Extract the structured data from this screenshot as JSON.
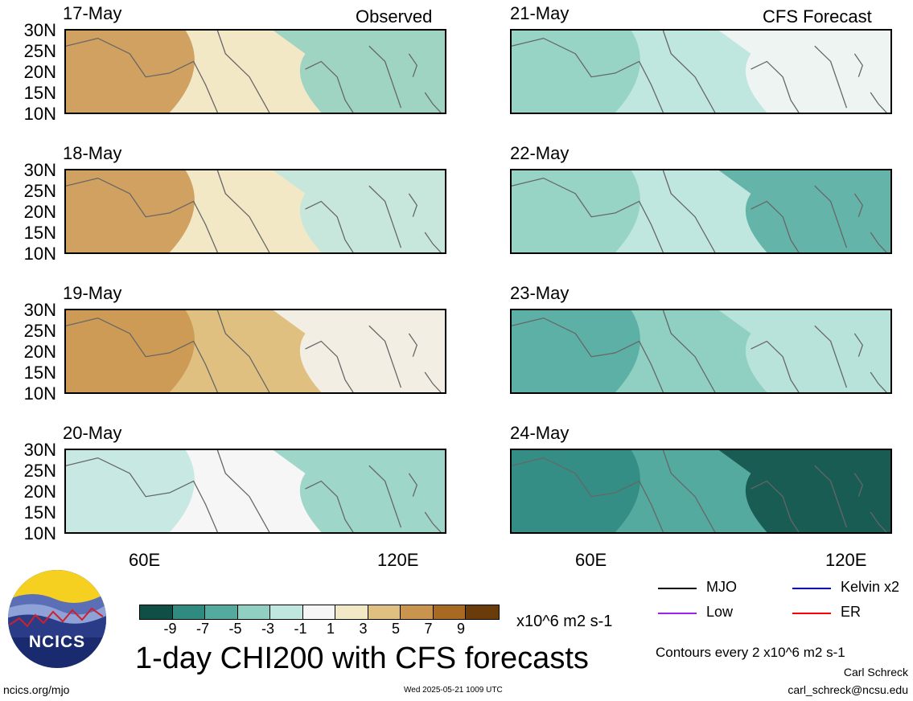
{
  "panels": {
    "left": [
      {
        "date": "17-May",
        "corner": "Observed",
        "fill": "#f3e8c5",
        "accent": "#c9944d",
        "accent2": "#8fd0c2"
      },
      {
        "date": "18-May",
        "fill": "#f3e8c5",
        "accent": "#c9944d",
        "accent2": "#bfe6df"
      },
      {
        "date": "19-May",
        "fill": "#e0c080",
        "accent": "#c9944d",
        "accent2": "#f6f6f6"
      },
      {
        "date": "20-May",
        "fill": "#f6f6f6",
        "accent": "#bfe6df",
        "accent2": "#8fd0c2"
      }
    ],
    "right": [
      {
        "date": "21-May",
        "corner": "CFS Forecast",
        "fill": "#bfe6df",
        "accent": "#8fd0c2",
        "accent2": "#f6f6f6"
      },
      {
        "date": "22-May",
        "fill": "#bfe6df",
        "accent": "#8fd0c2",
        "accent2": "#55aaa0"
      },
      {
        "date": "23-May",
        "fill": "#8fd0c2",
        "accent": "#55aaa0",
        "accent2": "#bfe6df"
      },
      {
        "date": "24-May",
        "fill": "#55aaa0",
        "accent": "#2f8a80",
        "accent2": "#0f4f45"
      }
    ]
  },
  "lat_labels": [
    "30N",
    "25N",
    "20N",
    "15N",
    "10N"
  ],
  "lon_labels": [
    "60E",
    "120E"
  ],
  "legend": {
    "items": [
      {
        "label": "MJO",
        "color": "#000000"
      },
      {
        "label": "Kelvin x2",
        "color": "#0000ff"
      },
      {
        "label": "Low",
        "color": "#a020f0"
      },
      {
        "label": "ER",
        "color": "#ff0000"
      }
    ],
    "contours_note": "Contours every 2 x10^6 m2 s-1"
  },
  "colorbar": {
    "colors": [
      "#0f4f45",
      "#2f8a80",
      "#55aaa0",
      "#8fd0c2",
      "#bfe6df",
      "#f6f6f6",
      "#f3e8c5",
      "#e0c080",
      "#c9944d",
      "#a86a22",
      "#6a3c0a"
    ],
    "ticks": [
      "-9",
      "-7",
      "-5",
      "-3",
      "-1",
      "1",
      "3",
      "5",
      "7",
      "9"
    ],
    "units": "x10^6 m2 s-1"
  },
  "title": "1-day CHI200 with CFS forecasts",
  "logo_text": "NCICS",
  "footer": {
    "site": "ncics.org/mjo",
    "timestamp": "Wed 2025-05-21 1009 UTC",
    "author": "Carl Schreck",
    "email": "carl_schreck@ncsu.edu"
  }
}
